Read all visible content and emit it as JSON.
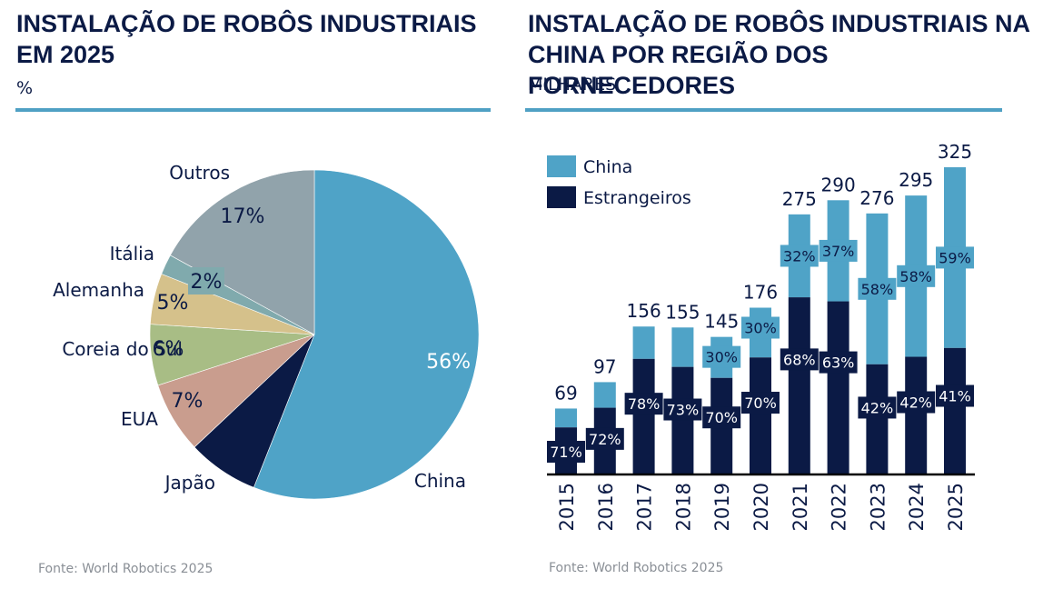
{
  "left_panel": {
    "title": "INSTALAÇÃO DE ROBÔS INDUSTRIAIS EM 2025",
    "unit": "%",
    "source": "Fonte: World Robotics 2025"
  },
  "right_panel": {
    "title": "INSTALAÇÃO DE ROBÔS INDUSTRIAIS NA CHINA POR REGIÃO DOS FORNECEDORES",
    "unit": "MILHARES",
    "source": "Fonte: World Robotics 2025"
  },
  "colors": {
    "title": "#0b1a45",
    "rule": "#4fa0c4",
    "china": "#4fa3c7",
    "foreign": "#0b1a45",
    "japan": "#0b1a45",
    "usa": "#c99d8e",
    "korea": "#a8bd85",
    "germany": "#d5c18b",
    "italy": "#80aaad",
    "others": "#91a3ab",
    "source": "#8a8f96"
  },
  "chart_data": [
    {
      "type": "pie",
      "title": "INSTALAÇÃO DE ROBÔS INDUSTRIAIS EM 2025",
      "unit": "%",
      "start": "12 o'clock, clockwise",
      "slices": [
        {
          "name": "China",
          "value": 56,
          "label": "56%",
          "color": "#4fa3c7",
          "label_color": "#ffffff"
        },
        {
          "name": "Japão",
          "value": 7,
          "label": "",
          "color": "#0b1a45",
          "label_color": "#ffffff"
        },
        {
          "name": "EUA",
          "value": 7,
          "label": "7%",
          "color": "#c99d8e",
          "label_color": "#0b1a45"
        },
        {
          "name": "Coreia do Sul",
          "value": 6,
          "label": "6%",
          "color": "#a8bd85",
          "label_color": "#0b1a45"
        },
        {
          "name": "Alemanha",
          "value": 5,
          "label": "5%",
          "color": "#d5c18b",
          "label_color": "#0b1a45"
        },
        {
          "name": "Itália",
          "value": 2,
          "label": "2%",
          "color": "#80aaad",
          "label_color": "#0b1a45"
        },
        {
          "name": "Outros",
          "value": 17,
          "label": "17%",
          "color": "#91a3ab",
          "label_color": "#0b1a45"
        }
      ]
    },
    {
      "type": "bar",
      "stacked": true,
      "title": "INSTALAÇÃO DE ROBÔS INDUSTRIAIS NA CHINA POR REGIÃO DOS FORNECEDORES",
      "unit": "MILHARES",
      "categories": [
        "2015",
        "2016",
        "2017",
        "2018",
        "2019",
        "2020",
        "2021",
        "2022",
        "2023",
        "2024",
        "2025"
      ],
      "totals": [
        69,
        97,
        156,
        155,
        145,
        176,
        275,
        290,
        276,
        295,
        325
      ],
      "series": [
        {
          "name": "Estrangeiros",
          "color": "#0b1a45",
          "share_pct": [
            71,
            72,
            78,
            73,
            70,
            70,
            68,
            63,
            42,
            42,
            41
          ]
        },
        {
          "name": "China",
          "color": "#4fa3c7",
          "share_pct": [
            29,
            28,
            22,
            27,
            30,
            30,
            32,
            37,
            58,
            58,
            59
          ]
        }
      ],
      "shown_china_labels": [
        null,
        null,
        null,
        null,
        "30%",
        "30%",
        "32%",
        "37%",
        "58%",
        "58%",
        "59%"
      ],
      "shown_foreign_labels": [
        "71%",
        "72%",
        "78%",
        "73%",
        "70%",
        "70%",
        "68%",
        "63%",
        "42%",
        "42%",
        "41%"
      ],
      "legend": [
        {
          "name": "China",
          "color": "#4fa3c7"
        },
        {
          "name": "Estrangeiros",
          "color": "#0b1a45"
        }
      ],
      "legend_position": "top-left",
      "ylim": [
        0,
        325
      ],
      "grid": false,
      "xtick_rotation": -90
    }
  ]
}
